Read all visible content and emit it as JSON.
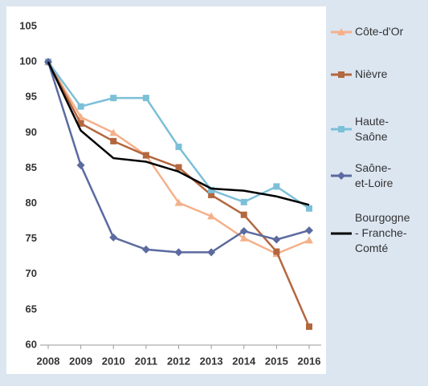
{
  "chart_data": {
    "type": "line",
    "x": [
      2008,
      2009,
      2010,
      2011,
      2012,
      2013,
      2014,
      2015,
      2016
    ],
    "series": [
      {
        "name": "Côte-d'Or",
        "color": "#f4b08a",
        "marker": "triangle",
        "values": [
          100,
          92.2,
          90,
          86.8,
          80.1,
          78.2,
          75.1,
          72.9,
          74.8
        ]
      },
      {
        "name": "Nièvre",
        "color": "#b3673f",
        "marker": "square",
        "values": [
          100,
          91.3,
          88.8,
          86.8,
          85.1,
          81.2,
          78.4,
          73.2,
          62.6
        ]
      },
      {
        "name": "Haute-Saône",
        "color": "#7cbfd8",
        "marker": "square",
        "values": [
          100,
          93.7,
          94.9,
          94.9,
          88,
          81.9,
          80.2,
          82.4,
          79.3
        ]
      },
      {
        "name": "Saône-et-Loire",
        "color": "#5b6a9f",
        "marker": "diamond",
        "values": [
          100,
          85.4,
          75.2,
          73.5,
          73.1,
          73.1,
          76.1,
          74.9,
          76.2
        ]
      },
      {
        "name": "Bourgogne - Franche-Comté",
        "color": "#000000",
        "marker": "none",
        "values": [
          100,
          90.3,
          86.4,
          85.9,
          84.5,
          82.1,
          81.8,
          81,
          79.8
        ]
      }
    ],
    "xlim": [
      2008,
      2016
    ],
    "xticks": [
      2008,
      2009,
      2010,
      2011,
      2012,
      2013,
      2014,
      2015,
      2016
    ],
    "ylim": [
      60,
      105
    ],
    "yticks": [
      60,
      65,
      70,
      75,
      80,
      85,
      90,
      95,
      100,
      105
    ],
    "grid": false,
    "legend": "right"
  }
}
